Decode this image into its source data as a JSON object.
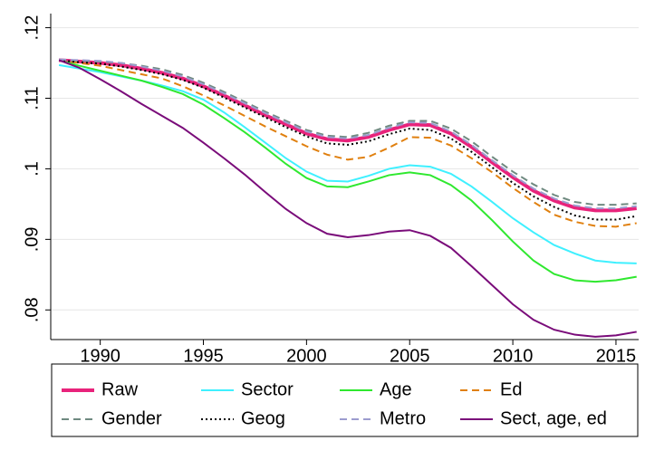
{
  "chart_data": {
    "type": "line",
    "x": [
      1988,
      1989,
      1990,
      1991,
      1992,
      1993,
      1994,
      1995,
      1996,
      1997,
      1998,
      1999,
      2000,
      2001,
      2002,
      2003,
      2004,
      2005,
      2006,
      2007,
      2008,
      2009,
      2010,
      2011,
      2012,
      2013,
      2014,
      2015,
      2016
    ],
    "xlim": [
      1987.6,
      2016.1
    ],
    "xticks": [
      1990,
      1995,
      2000,
      2005,
      2010,
      2015
    ],
    "ylim": [
      0.0758,
      0.122
    ],
    "yticks": [
      {
        "value": 0.08,
        "label": ".08"
      },
      {
        "value": 0.09,
        "label": ".09"
      },
      {
        "value": 0.1,
        "label": ".1"
      },
      {
        "value": 0.11,
        "label": ".11"
      },
      {
        "value": 0.12,
        "label": ".12"
      }
    ],
    "grid": true,
    "legend": "bottom",
    "series": [
      {
        "name": "Raw",
        "color": "#e8237b",
        "style": "solid",
        "width": 4,
        "values": [
          0.1154,
          0.1152,
          0.115,
          0.1147,
          0.1142,
          0.1136,
          0.1128,
          0.1117,
          0.1104,
          0.109,
          0.1076,
          0.1063,
          0.105,
          0.1042,
          0.104,
          0.1045,
          0.1055,
          0.1063,
          0.1062,
          0.105,
          0.1031,
          0.1009,
          0.0988,
          0.0969,
          0.0955,
          0.0945,
          0.0941,
          0.0941,
          0.0944
        ]
      },
      {
        "name": "Sector",
        "color": "#3ff0ff",
        "style": "solid",
        "width": 2,
        "values": [
          0.1147,
          0.1142,
          0.1137,
          0.1131,
          0.1125,
          0.1118,
          0.111,
          0.1098,
          0.108,
          0.1059,
          0.1037,
          0.1015,
          0.0996,
          0.0983,
          0.0982,
          0.099,
          0.1,
          0.1005,
          0.1003,
          0.0993,
          0.0975,
          0.0953,
          0.093,
          0.091,
          0.0892,
          0.088,
          0.087,
          0.0867,
          0.0866
        ]
      },
      {
        "name": "Age",
        "color": "#2fe82f",
        "style": "solid",
        "width": 2,
        "values": [
          0.1154,
          0.1146,
          0.1139,
          0.1132,
          0.1125,
          0.1116,
          0.1106,
          0.1091,
          0.1072,
          0.1052,
          0.103,
          0.1007,
          0.0987,
          0.0975,
          0.0974,
          0.0982,
          0.0991,
          0.0995,
          0.0991,
          0.0977,
          0.0955,
          0.0927,
          0.0897,
          0.087,
          0.0851,
          0.0842,
          0.084,
          0.0842,
          0.0847
        ]
      },
      {
        "name": "Ed",
        "color": "#e0800f",
        "style": "dash",
        "width": 2,
        "values": [
          0.1154,
          0.115,
          0.1146,
          0.114,
          0.1134,
          0.1128,
          0.1117,
          0.1104,
          0.109,
          0.1075,
          0.106,
          0.1046,
          0.1032,
          0.102,
          0.1013,
          0.1017,
          0.103,
          0.1045,
          0.1044,
          0.1033,
          0.1015,
          0.0995,
          0.0973,
          0.0953,
          0.0935,
          0.0925,
          0.0919,
          0.0918,
          0.0923
        ]
      },
      {
        "name": "Gender",
        "color": "#6f8a80",
        "style": "dash",
        "width": 2,
        "values": [
          0.1154,
          0.1153,
          0.1152,
          0.115,
          0.1146,
          0.1141,
          0.1133,
          0.1122,
          0.1109,
          0.1095,
          0.1081,
          0.1068,
          0.1055,
          0.1047,
          0.1045,
          0.1051,
          0.1061,
          0.1068,
          0.1068,
          0.1057,
          0.1039,
          0.1017,
          0.0996,
          0.0978,
          0.0963,
          0.0953,
          0.0949,
          0.0949,
          0.0951
        ]
      },
      {
        "name": "Geog",
        "color": "#000000",
        "style": "dot",
        "width": 2,
        "values": [
          0.1154,
          0.1151,
          0.1149,
          0.1145,
          0.114,
          0.1134,
          0.1126,
          0.1115,
          0.1101,
          0.1087,
          0.1073,
          0.1059,
          0.1046,
          0.1036,
          0.1034,
          0.1039,
          0.1049,
          0.1057,
          0.1055,
          0.1043,
          0.1024,
          0.1002,
          0.098,
          0.0961,
          0.0946,
          0.0934,
          0.0928,
          0.0928,
          0.0933
        ]
      },
      {
        "name": "Metro",
        "color": "#9c9ccf",
        "style": "dash",
        "width": 2,
        "values": [
          0.1155,
          0.1154,
          0.1153,
          0.115,
          0.1145,
          0.1139,
          0.1131,
          0.112,
          0.1107,
          0.1093,
          0.1079,
          0.1066,
          0.1053,
          0.1045,
          0.1043,
          0.1048,
          0.1058,
          0.1066,
          0.1065,
          0.1053,
          0.1034,
          0.1012,
          0.0991,
          0.0972,
          0.0958,
          0.0948,
          0.0944,
          0.0944,
          0.0947
        ]
      },
      {
        "name": "Sect, age, ed",
        "color": "#7a0c7a",
        "style": "solid",
        "width": 2,
        "values": [
          0.1154,
          0.1143,
          0.1127,
          0.111,
          0.1092,
          0.1075,
          0.1058,
          0.1037,
          0.1015,
          0.0992,
          0.0967,
          0.0943,
          0.0923,
          0.0908,
          0.0903,
          0.0906,
          0.0911,
          0.0913,
          0.0905,
          0.0888,
          0.0862,
          0.0835,
          0.0808,
          0.0786,
          0.0772,
          0.0765,
          0.0762,
          0.0764,
          0.0769
        ]
      }
    ]
  }
}
